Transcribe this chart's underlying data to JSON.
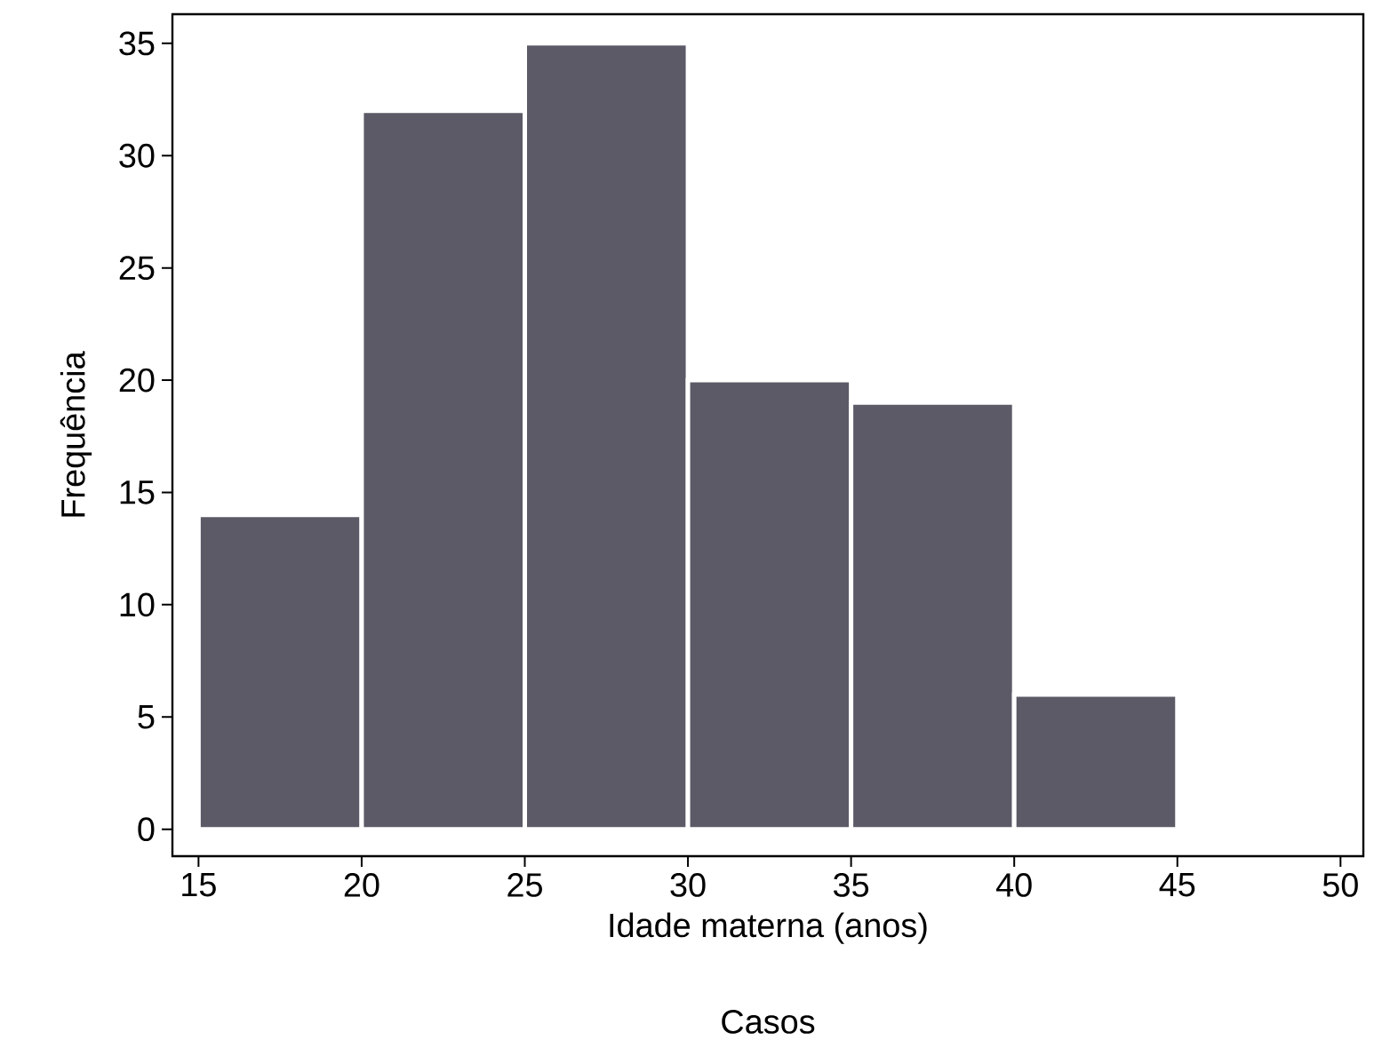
{
  "chart_data": {
    "type": "histogram",
    "xlabel": "Idade materna (anos)",
    "ylabel": "Frequência",
    "annotations": [
      "Casos"
    ],
    "bins": [
      15,
      20,
      25,
      30,
      35,
      40,
      45,
      50
    ],
    "values": [
      14,
      32,
      35,
      20,
      19,
      6,
      0
    ],
    "color": "#5b5a66",
    "xlim": [
      14.2,
      50.7
    ],
    "ylim": [
      -1.2,
      36.3
    ],
    "xticks": [
      15,
      20,
      25,
      30,
      35,
      40,
      45,
      50
    ],
    "yticks": [
      0,
      5,
      10,
      15,
      20,
      25,
      30,
      35
    ],
    "grid": false,
    "legend": false
  }
}
